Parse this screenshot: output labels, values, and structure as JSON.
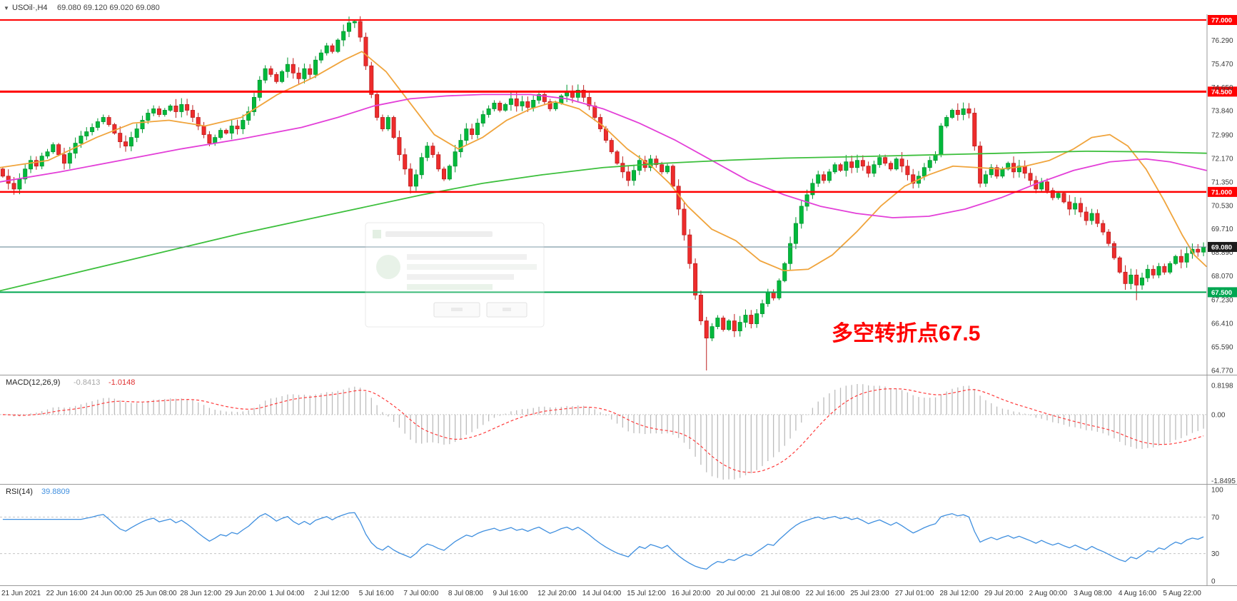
{
  "header": {
    "expander": "▼",
    "symbol": "USOil·,H4",
    "ohlc": "69.080 69.120 69.020 69.080"
  },
  "colors": {
    "up": "#00b93c",
    "up_edge": "#00962f",
    "down": "#ee2c2c",
    "down_edge": "#bd1f1f",
    "axis_text": "#3a3a3a",
    "separator": "#9a9a9a"
  },
  "chart_data": {
    "type": "candlestick",
    "timeframe": "H4",
    "symbol": "USOil",
    "candles_per_label": 8,
    "x_labels": [
      "21 Jun 2021",
      "22 Jun 16:00",
      "24 Jun 00:00",
      "25 Jun 08:00",
      "28 Jun 12:00",
      "29 Jun 20:00",
      "1 Jul 04:00",
      "2 Jul 12:00",
      "5 Jul 16:00",
      "7 Jul 00:00",
      "8 Jul 08:00",
      "9 Jul 16:00",
      "12 Jul 20:00",
      "14 Jul 04:00",
      "15 Jul 12:00",
      "16 Jul 20:00",
      "20 Jul 00:00",
      "21 Jul 08:00",
      "22 Jul 16:00",
      "25 Jul 23:00",
      "27 Jul 01:00",
      "28 Jul 12:00",
      "29 Jul 20:00",
      "2 Aug 00:00",
      "3 Aug 08:00",
      "4 Aug 16:00",
      "5 Aug 22:00"
    ],
    "main": {
      "ylim": [
        64.5,
        77.2
      ],
      "first_open": 71.8,
      "closes": [
        71.55,
        71.3,
        71.1,
        71.45,
        71.8,
        72.1,
        71.9,
        72.25,
        72.4,
        72.65,
        72.3,
        72.0,
        72.35,
        72.7,
        72.95,
        73.1,
        73.25,
        73.45,
        73.6,
        73.35,
        73.05,
        72.75,
        72.6,
        72.9,
        73.2,
        73.5,
        73.75,
        73.9,
        73.7,
        73.85,
        74.0,
        73.8,
        74.05,
        73.85,
        73.6,
        73.3,
        73.0,
        72.7,
        72.9,
        73.15,
        73.05,
        73.3,
        73.2,
        73.5,
        73.8,
        74.3,
        74.9,
        75.3,
        75.1,
        74.85,
        75.2,
        75.45,
        75.15,
        74.95,
        75.3,
        75.1,
        75.6,
        75.85,
        76.1,
        75.9,
        76.3,
        76.6,
        76.9,
        76.95,
        76.4,
        75.4,
        74.4,
        73.6,
        73.2,
        73.6,
        72.9,
        72.3,
        71.8,
        71.2,
        71.6,
        72.2,
        72.6,
        72.3,
        71.8,
        71.45,
        71.9,
        72.4,
        72.8,
        73.2,
        73.0,
        73.4,
        73.7,
        73.9,
        74.1,
        73.85,
        74.05,
        74.25,
        74.0,
        74.15,
        73.95,
        74.2,
        74.4,
        74.15,
        73.9,
        74.1,
        74.35,
        74.5,
        74.3,
        74.55,
        74.3,
        74.0,
        73.6,
        73.2,
        72.8,
        72.4,
        72.0,
        71.7,
        71.4,
        71.75,
        72.1,
        71.85,
        72.15,
        71.95,
        71.7,
        71.9,
        71.2,
        70.4,
        69.5,
        68.5,
        67.4,
        66.5,
        65.9,
        66.3,
        66.6,
        66.2,
        66.5,
        66.15,
        66.45,
        66.7,
        66.4,
        66.75,
        67.1,
        67.5,
        67.3,
        67.9,
        68.5,
        69.2,
        69.9,
        70.5,
        70.9,
        71.3,
        71.6,
        71.4,
        71.7,
        71.95,
        71.75,
        72.05,
        71.85,
        72.1,
        71.9,
        71.65,
        71.95,
        72.2,
        72.0,
        71.8,
        72.15,
        71.9,
        71.6,
        71.3,
        71.55,
        71.85,
        72.1,
        72.3,
        73.3,
        73.6,
        73.85,
        73.7,
        73.9,
        73.75,
        72.6,
        71.3,
        71.6,
        71.85,
        71.55,
        71.8,
        72.0,
        71.7,
        71.9,
        71.65,
        71.4,
        71.1,
        71.35,
        71.05,
        70.8,
        70.95,
        70.65,
        70.4,
        70.6,
        70.3,
        70.0,
        70.25,
        69.9,
        69.6,
        69.2,
        68.7,
        68.2,
        67.8,
        68.1,
        67.75,
        68.0,
        68.3,
        68.1,
        68.4,
        68.2,
        68.5,
        68.75,
        68.55,
        68.85,
        69.0,
        68.9,
        69.08
      ],
      "high_overrides": {
        "63": 77.0
      },
      "low_overrides": {
        "73": 70.95,
        "126": 64.77,
        "203": 67.22
      },
      "y_ticks": [
        "76.290",
        "75.470",
        "74.650",
        "73.840",
        "72.990",
        "72.170",
        "71.350",
        "70.530",
        "69.710",
        "68.890",
        "68.070",
        "67.230",
        "66.410",
        "65.590",
        "64.770"
      ],
      "hlines": [
        {
          "price": 77.0,
          "label": "77.000",
          "color": "#ff0000",
          "width": 2
        },
        {
          "price": 74.5,
          "label": "74.500",
          "color": "#ff0000",
          "width": 3
        },
        {
          "price": 71.0,
          "label": "71.000",
          "color": "#ff0000",
          "width": 2.5
        },
        {
          "price": 67.5,
          "label": "67.500",
          "color": "#00a651",
          "width": 2
        }
      ],
      "price_line": {
        "price": 69.08,
        "label": "69.080",
        "line_color": "#5b7f8f",
        "badge_color": "#1c1c1c"
      },
      "ma": [
        {
          "name": "ma-fast-orange",
          "color": "#f0a43c",
          "points": [
            [
              0,
              71.85
            ],
            [
              0.04,
              72.1
            ],
            [
              0.08,
              72.9
            ],
            [
              0.11,
              73.4
            ],
            [
              0.14,
              73.5
            ],
            [
              0.17,
              73.3
            ],
            [
              0.2,
              73.6
            ],
            [
              0.23,
              74.4
            ],
            [
              0.26,
              75.0
            ],
            [
              0.285,
              75.6
            ],
            [
              0.3,
              75.9
            ],
            [
              0.32,
              75.2
            ],
            [
              0.34,
              74.1
            ],
            [
              0.36,
              73.0
            ],
            [
              0.38,
              72.5
            ],
            [
              0.4,
              72.9
            ],
            [
              0.42,
              73.5
            ],
            [
              0.44,
              73.9
            ],
            [
              0.46,
              74.15
            ],
            [
              0.48,
              73.9
            ],
            [
              0.5,
              73.3
            ],
            [
              0.52,
              72.5
            ],
            [
              0.54,
              71.9
            ],
            [
              0.555,
              71.3
            ],
            [
              0.57,
              70.5
            ],
            [
              0.59,
              69.7
            ],
            [
              0.61,
              69.3
            ],
            [
              0.63,
              68.6
            ],
            [
              0.65,
              68.25
            ],
            [
              0.67,
              68.3
            ],
            [
              0.69,
              68.8
            ],
            [
              0.71,
              69.6
            ],
            [
              0.73,
              70.5
            ],
            [
              0.75,
              71.2
            ],
            [
              0.77,
              71.6
            ],
            [
              0.79,
              71.9
            ],
            [
              0.81,
              71.85
            ],
            [
              0.83,
              71.8
            ],
            [
              0.85,
              71.9
            ],
            [
              0.87,
              72.1
            ],
            [
              0.89,
              72.5
            ],
            [
              0.905,
              72.9
            ],
            [
              0.92,
              73.0
            ],
            [
              0.935,
              72.6
            ],
            [
              0.95,
              71.8
            ],
            [
              0.965,
              70.7
            ],
            [
              0.98,
              69.5
            ],
            [
              0.99,
              68.8
            ],
            [
              1.0,
              68.4
            ]
          ]
        },
        {
          "name": "ma-mid-magenta",
          "color": "#e33fd8",
          "points": [
            [
              0,
              71.35
            ],
            [
              0.05,
              71.7
            ],
            [
              0.1,
              72.1
            ],
            [
              0.15,
              72.5
            ],
            [
              0.2,
              72.85
            ],
            [
              0.25,
              73.25
            ],
            [
              0.28,
              73.6
            ],
            [
              0.31,
              74.0
            ],
            [
              0.34,
              74.25
            ],
            [
              0.37,
              74.35
            ],
            [
              0.4,
              74.4
            ],
            [
              0.44,
              74.4
            ],
            [
              0.47,
              74.25
            ],
            [
              0.5,
              73.9
            ],
            [
              0.53,
              73.4
            ],
            [
              0.56,
              72.8
            ],
            [
              0.59,
              72.1
            ],
            [
              0.62,
              71.4
            ],
            [
              0.65,
              70.9
            ],
            [
              0.68,
              70.5
            ],
            [
              0.71,
              70.25
            ],
            [
              0.74,
              70.1
            ],
            [
              0.77,
              70.15
            ],
            [
              0.8,
              70.4
            ],
            [
              0.83,
              70.8
            ],
            [
              0.86,
              71.3
            ],
            [
              0.89,
              71.75
            ],
            [
              0.92,
              72.05
            ],
            [
              0.95,
              72.15
            ],
            [
              0.97,
              72.05
            ],
            [
              1.0,
              71.75
            ]
          ]
        },
        {
          "name": "ma-slow-green",
          "color": "#3cbf3c",
          "points": [
            [
              0,
              67.55
            ],
            [
              0.05,
              68.05
            ],
            [
              0.1,
              68.55
            ],
            [
              0.15,
              69.05
            ],
            [
              0.2,
              69.55
            ],
            [
              0.25,
              70.0
            ],
            [
              0.3,
              70.45
            ],
            [
              0.35,
              70.9
            ],
            [
              0.4,
              71.3
            ],
            [
              0.45,
              71.6
            ],
            [
              0.5,
              71.85
            ],
            [
              0.55,
              72.0
            ],
            [
              0.6,
              72.1
            ],
            [
              0.65,
              72.18
            ],
            [
              0.7,
              72.22
            ],
            [
              0.75,
              72.27
            ],
            [
              0.8,
              72.32
            ],
            [
              0.85,
              72.37
            ],
            [
              0.9,
              72.42
            ],
            [
              0.95,
              72.4
            ],
            [
              1.0,
              72.35
            ]
          ]
        }
      ],
      "annotation": {
        "text": "多空转折点67.5",
        "color": "#ff0000"
      }
    },
    "macd": {
      "params_label": "MACD(12,26,9)",
      "value_main": "-0.8413",
      "value_signal": "-1.0148",
      "fast": 12,
      "slow": 26,
      "signal": 9,
      "y_ticks": [
        "0.8198",
        "0.00",
        "-1.8495"
      ],
      "hist_color": "#bcbcbc",
      "signal_color": "#ff3b3b"
    },
    "rsi": {
      "params_label": "RSI(14)",
      "value": "39.8809",
      "period": 14,
      "levels": [
        70,
        30
      ],
      "y_ticks": [
        "100",
        "70",
        "30",
        "0"
      ],
      "line_color": "#3f8fdf"
    }
  }
}
